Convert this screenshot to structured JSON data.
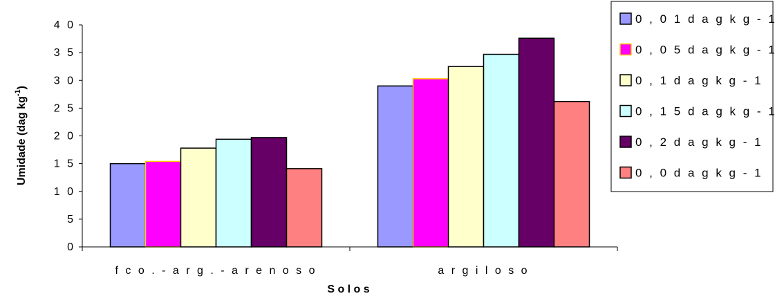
{
  "chart_data": {
    "type": "bar",
    "title": "",
    "xlabel": "S o l o s",
    "ylabel": "Umidade (dag kg",
    "ylabel_sup": "-1",
    "ylabel_close": ")",
    "ylim": [
      0,
      40
    ],
    "yticks": [
      "0",
      "5",
      "1 0",
      "1 5",
      "2 0",
      "2 5",
      "3 0",
      "3 5",
      "4 0"
    ],
    "ytick_values": [
      0,
      5,
      10,
      15,
      20,
      25,
      30,
      35,
      40
    ],
    "categories": [
      "f c o . - a r g . - a r e n o s o",
      "a r g i l o s o"
    ],
    "grid": false,
    "legend_position": "top-right",
    "series": [
      {
        "name": "0 , 0 1  d a g  k g - 1",
        "color": "#9999ff",
        "edge": "#000000",
        "values": [
          15.0,
          29.0
        ]
      },
      {
        "name": "0 , 0 5  d a g  k g - 1",
        "color": "#ff00ff",
        "edge": "#ffcc00",
        "values": [
          15.4,
          30.3
        ]
      },
      {
        "name": "0 , 1  d a g  k g - 1",
        "color": "#ffffcc",
        "edge": "#000000",
        "values": [
          17.8,
          32.5
        ]
      },
      {
        "name": "0 , 1 5  d a g  k g - 1",
        "color": "#ccffff",
        "edge": "#000000",
        "values": [
          19.4,
          34.7
        ]
      },
      {
        "name": "0 , 2  d a g  k g - 1",
        "color": "#660066",
        "edge": "#000000",
        "values": [
          19.7,
          37.6
        ]
      },
      {
        "name": "0 , 0  d a g  k g - 1",
        "color": "#ff8080",
        "edge": "#000000",
        "values": [
          14.1,
          26.2
        ]
      }
    ]
  }
}
